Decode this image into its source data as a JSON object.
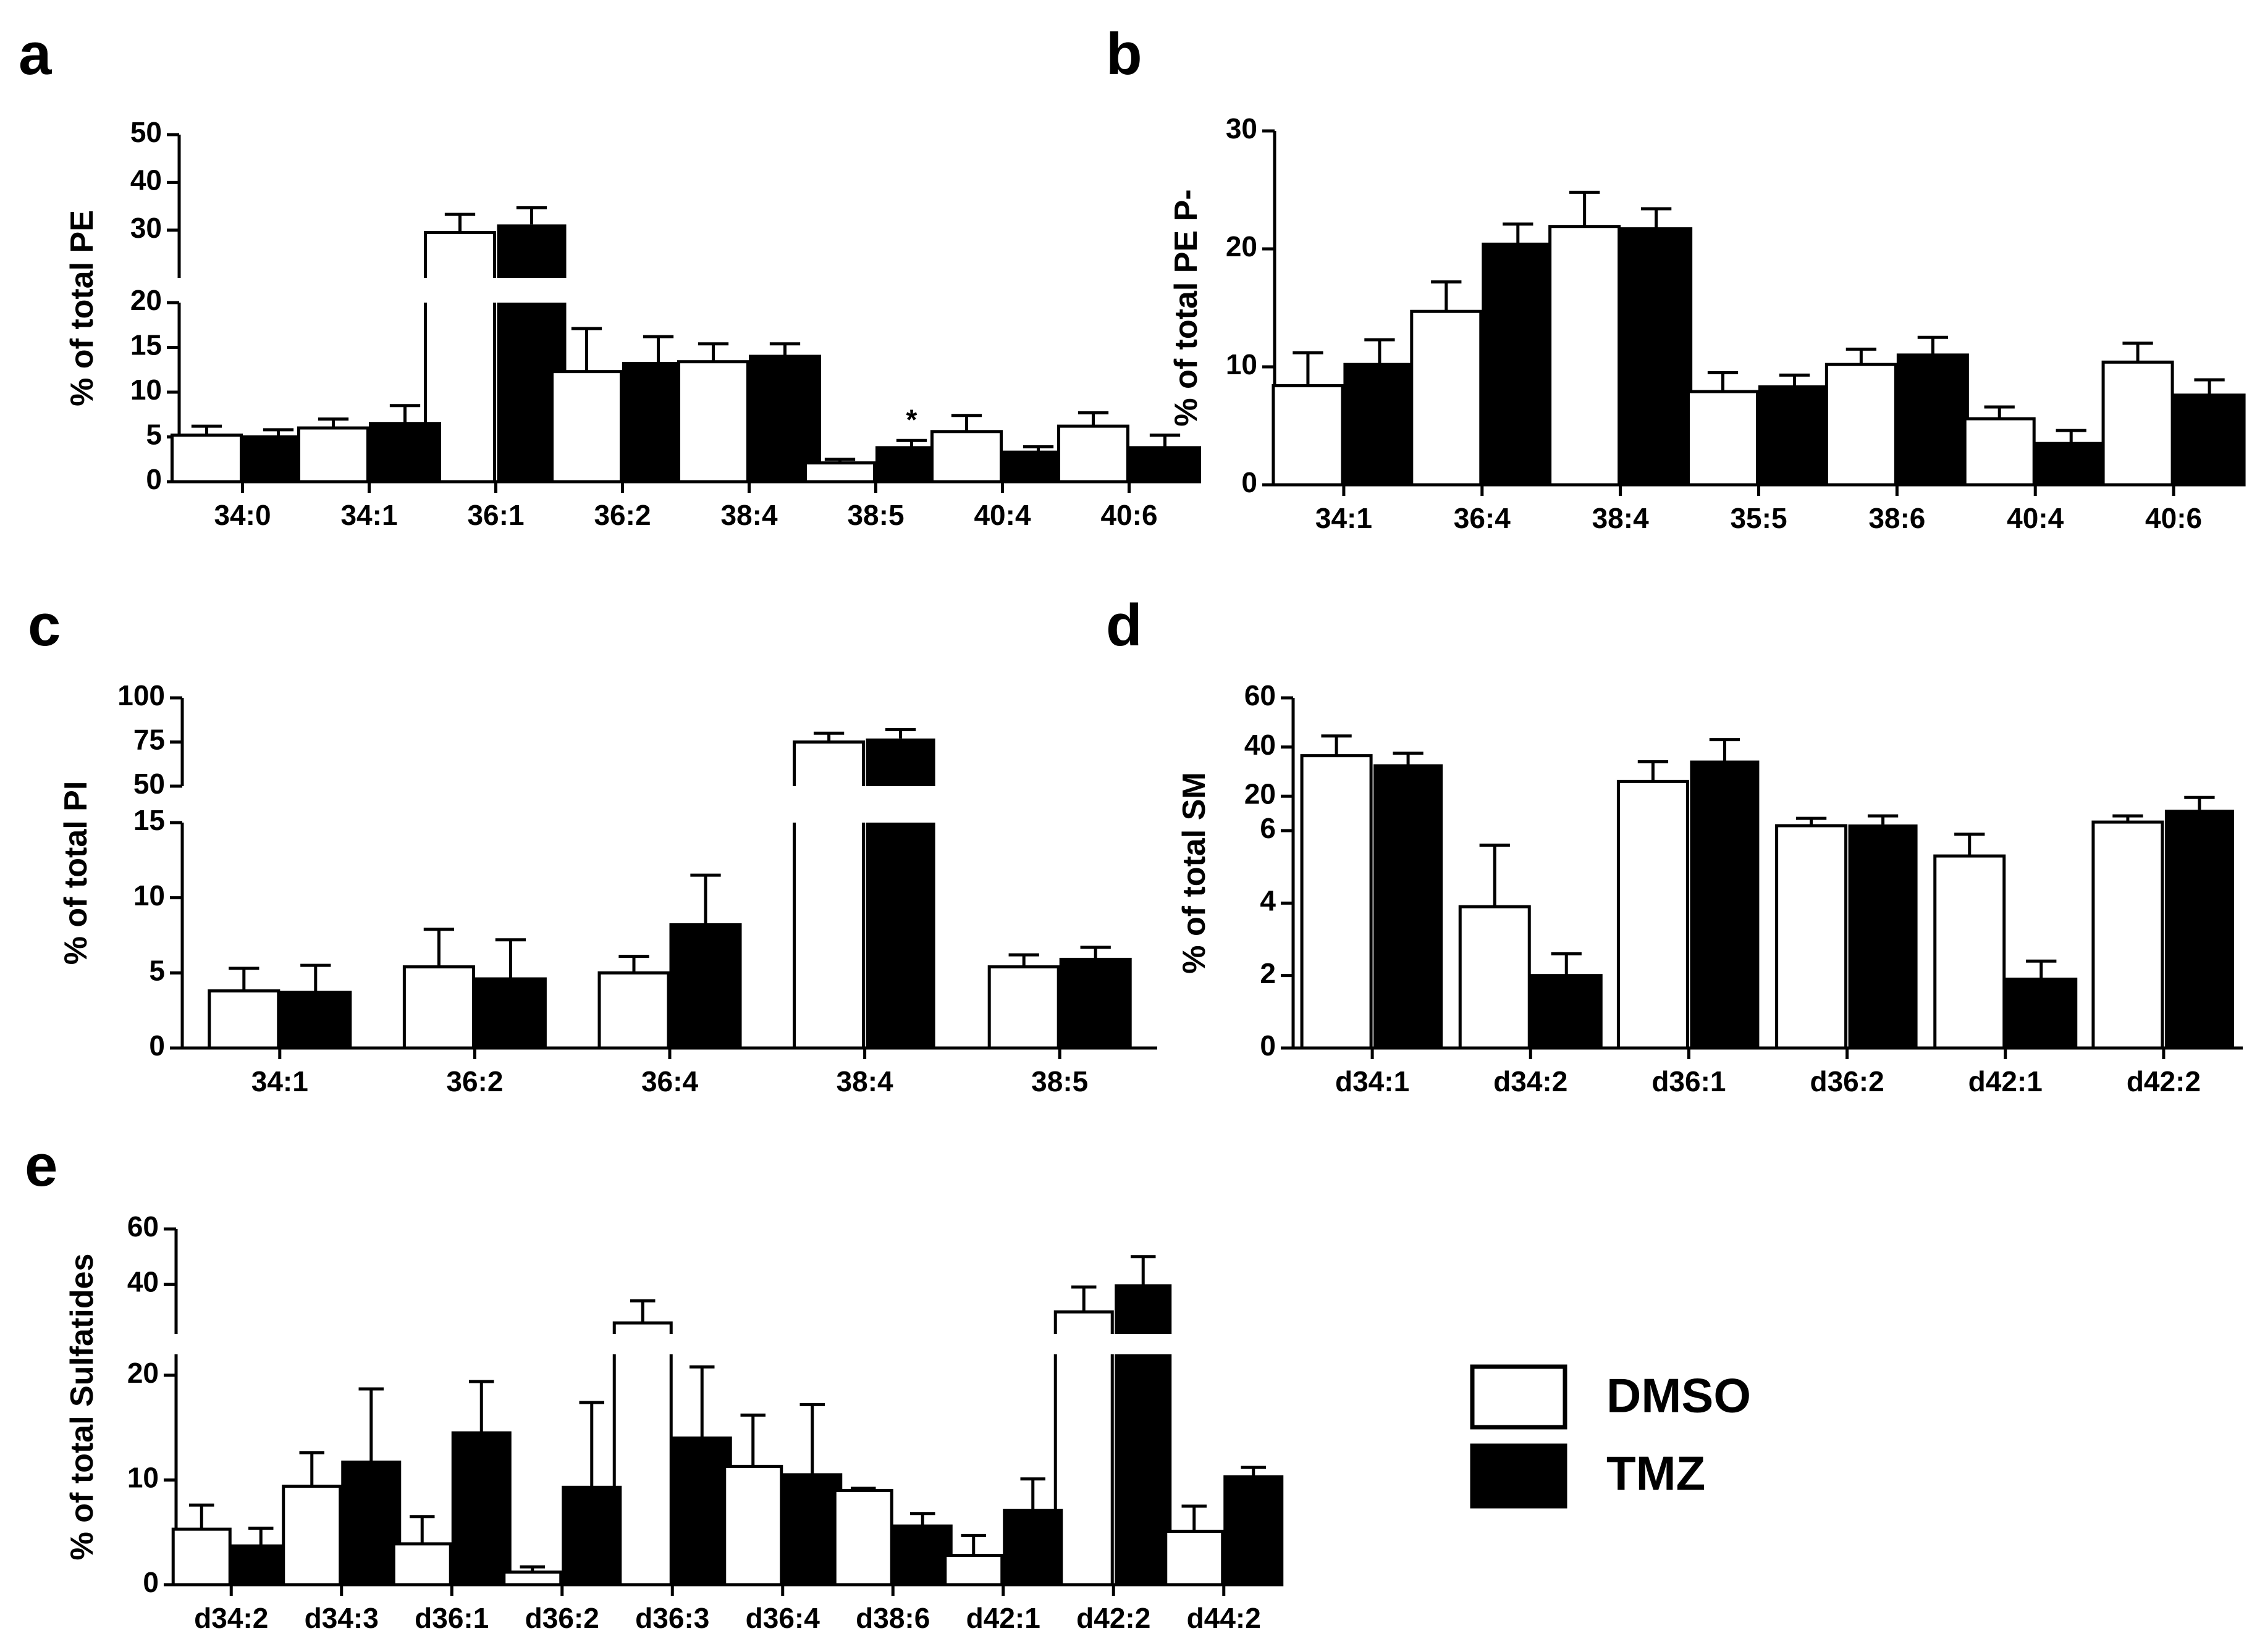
{
  "legend": {
    "dmso": "DMSO",
    "tmz": "TMZ"
  },
  "colors": {
    "dmso": "#ffffff",
    "tmz": "#000000",
    "stroke": "#000000"
  },
  "chart_data": [
    {
      "id": "a",
      "label": "a",
      "type": "bar",
      "ylabel": "% of total PE",
      "categories": [
        "34:0",
        "34:1",
        "36:1",
        "36:2",
        "38:4",
        "38:5",
        "40:4",
        "40:6"
      ],
      "series": [
        {
          "name": "DMSO",
          "values": [
            5.2,
            6.0,
            29.5,
            12.3,
            13.4,
            2.1,
            5.6,
            6.2
          ],
          "errors": [
            1.0,
            1.0,
            3.8,
            4.8,
            2.0,
            0.4,
            1.8,
            1.5
          ]
        },
        {
          "name": "TMZ",
          "values": [
            5.0,
            6.5,
            31.2,
            13.2,
            14.0,
            3.8,
            3.3,
            3.8
          ],
          "errors": [
            0.8,
            2.0,
            3.5,
            3.0,
            1.4,
            0.8,
            0.6,
            1.4
          ]
        }
      ],
      "annotations": [
        {
          "category": "38:5",
          "series": "TMZ",
          "text": "*"
        }
      ],
      "axis": {
        "lower": [
          0,
          20
        ],
        "upper": [
          20,
          50
        ],
        "lower_ticks": [
          0,
          5,
          10,
          15,
          20
        ],
        "upper_ticks": [
          30,
          40,
          50
        ]
      }
    },
    {
      "id": "b",
      "label": "b",
      "type": "bar",
      "ylabel": "% of total PE P-",
      "categories": [
        "34:1",
        "36:4",
        "38:4",
        "35:5",
        "38:6",
        "40:4",
        "40:6"
      ],
      "series": [
        {
          "name": "DMSO",
          "values": [
            8.4,
            14.7,
            21.9,
            7.9,
            10.2,
            5.6,
            10.4
          ],
          "errors": [
            2.8,
            2.5,
            2.9,
            1.6,
            1.3,
            1.0,
            1.6
          ]
        },
        {
          "name": "TMZ",
          "values": [
            10.2,
            20.4,
            21.7,
            8.3,
            11.0,
            3.5,
            7.6
          ],
          "errors": [
            2.1,
            1.7,
            1.7,
            1.0,
            1.5,
            1.1,
            1.3
          ]
        }
      ],
      "axis": {
        "range": [
          0,
          30
        ],
        "ticks": [
          0,
          10,
          20,
          30
        ]
      }
    },
    {
      "id": "c",
      "label": "c",
      "type": "bar",
      "ylabel": "% of total PI",
      "categories": [
        "34:1",
        "36:2",
        "36:4",
        "38:4",
        "38:5"
      ],
      "series": [
        {
          "name": "DMSO",
          "values": [
            3.8,
            5.4,
            5.0,
            75.0,
            5.4
          ],
          "errors": [
            1.5,
            2.5,
            1.1,
            5.0,
            0.8
          ]
        },
        {
          "name": "TMZ",
          "values": [
            3.7,
            4.6,
            8.2,
            77.0,
            5.9
          ],
          "errors": [
            1.8,
            2.6,
            3.3,
            5.0,
            0.8
          ]
        }
      ],
      "axis": {
        "lower": [
          0,
          15
        ],
        "upper": [
          50,
          100
        ],
        "lower_ticks": [
          0,
          5,
          10,
          15
        ],
        "upper_ticks": [
          50,
          75,
          100
        ]
      }
    },
    {
      "id": "d",
      "label": "d",
      "type": "bar",
      "ylabel": "% of total SM",
      "categories": [
        "d34:1",
        "d34:2",
        "d36:1",
        "d36:2",
        "d42:1",
        "d42:2"
      ],
      "series": [
        {
          "name": "DMSO",
          "values": [
            36.5,
            3.9,
            26.0,
            8.0,
            5.3,
            9.5
          ],
          "errors": [
            8.0,
            1.7,
            8.0,
            3.0,
            0.6,
            2.5
          ]
        },
        {
          "name": "TMZ",
          "values": [
            33.0,
            2.0,
            34.5,
            8.5,
            1.9,
            14.5
          ],
          "errors": [
            4.5,
            0.6,
            8.5,
            3.5,
            0.5,
            5.0
          ]
        }
      ],
      "axis": {
        "lower": [
          0,
          6
        ],
        "upper": [
          6,
          60
        ],
        "lower_ticks": [
          0,
          2,
          4,
          6
        ],
        "upper_ticks": [
          20,
          40,
          60
        ]
      }
    },
    {
      "id": "e",
      "label": "e",
      "type": "bar",
      "ylabel": "% of total Sulfatides",
      "categories": [
        "d34:2",
        "d34:3",
        "d36:1",
        "d36:2",
        "d36:3",
        "d36:4",
        "d38:6",
        "d42:1",
        "d42:2",
        "d44:2"
      ],
      "series": [
        {
          "name": "DMSO",
          "values": [
            5.3,
            9.4,
            3.9,
            1.2,
            26.0,
            11.3,
            9.0,
            2.8,
            30.0,
            5.1
          ],
          "errors": [
            2.3,
            3.2,
            2.6,
            0.5,
            8.0,
            4.9,
            0.2,
            1.9,
            9.0,
            2.4
          ]
        },
        {
          "name": "TMZ",
          "values": [
            3.7,
            11.7,
            14.5,
            9.3,
            14.0,
            10.5,
            5.6,
            7.1,
            40.0,
            10.3
          ],
          "errors": [
            1.7,
            7.0,
            4.9,
            8.1,
            6.8,
            6.7,
            1.2,
            3.0,
            10.0,
            0.9
          ]
        }
      ],
      "axis": {
        "lower": [
          0,
          22
        ],
        "upper": [
          22,
          60
        ],
        "lower_ticks": [
          0,
          10,
          20
        ],
        "upper_ticks": [
          40,
          60
        ]
      }
    }
  ]
}
